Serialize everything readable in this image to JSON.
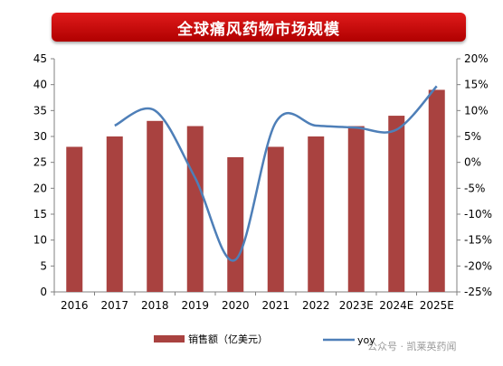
{
  "title": "全球痛风药物市场规模",
  "watermark": "公众号 · 凯莱英药闻",
  "chart_data": {
    "type": "bar+line",
    "categories": [
      "2016",
      "2017",
      "2018",
      "2019",
      "2020",
      "2021",
      "2022",
      "2023E",
      "2024E",
      "2025E"
    ],
    "series": [
      {
        "name": "销售额（亿美元）",
        "type": "bar",
        "axis": "left",
        "color": "#a94240",
        "values": [
          28,
          30,
          33,
          32,
          26,
          28,
          30,
          32,
          34,
          39
        ]
      },
      {
        "name": "yoy",
        "type": "line",
        "axis": "right",
        "color": "#4e7fb8",
        "values": [
          null,
          7.1,
          10.0,
          -3.0,
          -18.8,
          7.7,
          7.1,
          6.7,
          6.3,
          14.7
        ]
      }
    ],
    "y_left": {
      "min": 0,
      "max": 45,
      "step": 5,
      "ticks": [
        "0",
        "5",
        "10",
        "15",
        "20",
        "25",
        "30",
        "35",
        "40",
        "45"
      ]
    },
    "y_right": {
      "min": -25,
      "max": 20,
      "step": 5,
      "ticks": [
        "-25%",
        "-20%",
        "-15%",
        "-10%",
        "-5%",
        "0%",
        "5%",
        "10%",
        "15%",
        "20%"
      ]
    },
    "legend_position": "bottom",
    "grid": false
  }
}
